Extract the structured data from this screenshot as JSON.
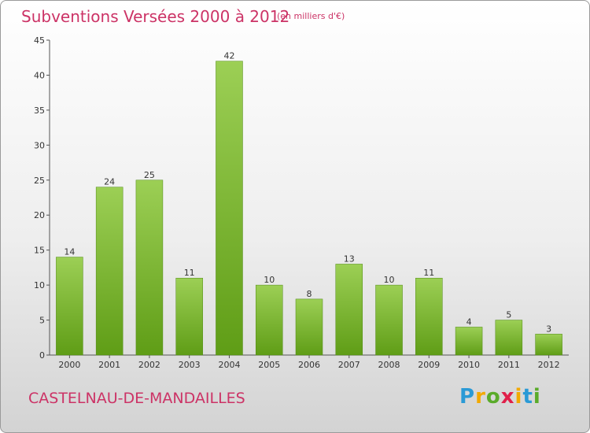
{
  "header": {
    "title": "Subventions Versées 2000 à 2012",
    "subtitle": "(en milliers d'€)"
  },
  "footer": {
    "commune": "CASTELNAU-DE-MANDAILLES",
    "logo_letters": [
      "P",
      "r",
      "o",
      "x",
      "i",
      "t",
      "i"
    ],
    "logo_colors": [
      "#2a9ad6",
      "#f2a900",
      "#5aab2a",
      "#e0204a",
      "#f2a900",
      "#2a9ad6",
      "#5aab2a"
    ]
  },
  "colors": {
    "title": "#cc3366",
    "bar_top": "#9ccf55",
    "bar_bottom": "#5f9d16",
    "axis": "#555555"
  },
  "chart_data": {
    "type": "bar",
    "title": "Subventions Versées 2000 à 2012",
    "subtitle": "(en milliers d'€)",
    "categories": [
      "2000",
      "2001",
      "2002",
      "2003",
      "2004",
      "2005",
      "2006",
      "2007",
      "2008",
      "2009",
      "2010",
      "2011",
      "2012"
    ],
    "values": [
      14,
      24,
      25,
      11,
      42,
      10,
      8,
      13,
      10,
      11,
      4,
      5,
      3
    ],
    "ylim": [
      0,
      45
    ],
    "yticks": [
      0,
      5,
      10,
      15,
      20,
      25,
      30,
      35,
      40,
      45
    ],
    "xlabel": "",
    "ylabel": "",
    "grid": false,
    "data_labels": true
  }
}
